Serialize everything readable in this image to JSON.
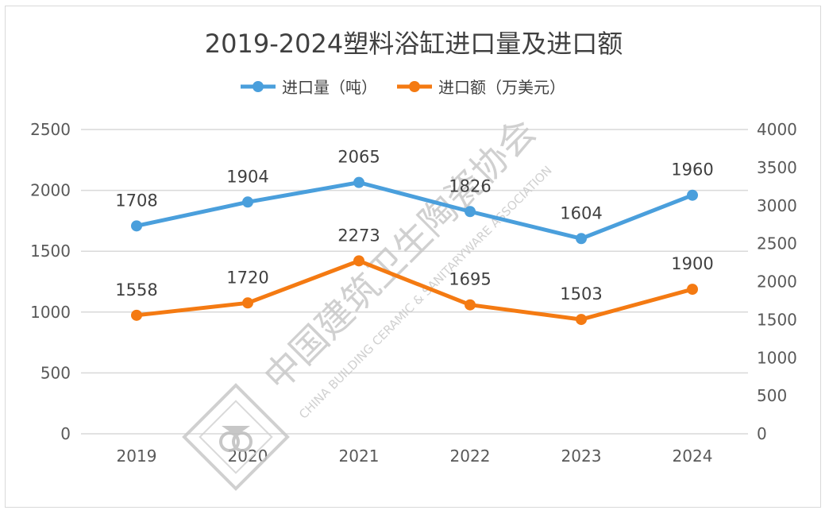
{
  "chart_data": {
    "type": "line",
    "title": "2019-2024塑料浴缸进口量及进口额",
    "categories": [
      "2019",
      "2020",
      "2021",
      "2022",
      "2023",
      "2024"
    ],
    "series": [
      {
        "name": "进口量（吨）",
        "axis": "left",
        "color": "#4a9fdc",
        "values": [
          1708,
          1904,
          2065,
          1826,
          1604,
          1960
        ]
      },
      {
        "name": "进口额（万美元）",
        "axis": "right",
        "color": "#f47a12",
        "values": [
          1558,
          1720,
          2273,
          1695,
          1503,
          1900
        ]
      }
    ],
    "y_left": {
      "range": [
        0,
        2500
      ],
      "ticks": [
        "0",
        "500",
        "1000",
        "1500",
        "2000",
        "2500"
      ]
    },
    "y_right": {
      "range": [
        0,
        4000
      ],
      "ticks": [
        "0",
        "500",
        "1000",
        "1500",
        "2000",
        "2500",
        "3000",
        "3500",
        "4000"
      ]
    },
    "grid": true,
    "legend_position": "top"
  },
  "watermark": {
    "cn": "中国建筑卫生陶瓷协会",
    "en": "CHINA BUILDING CERAMIC & SANITARYWARE ASSOCIATION"
  }
}
